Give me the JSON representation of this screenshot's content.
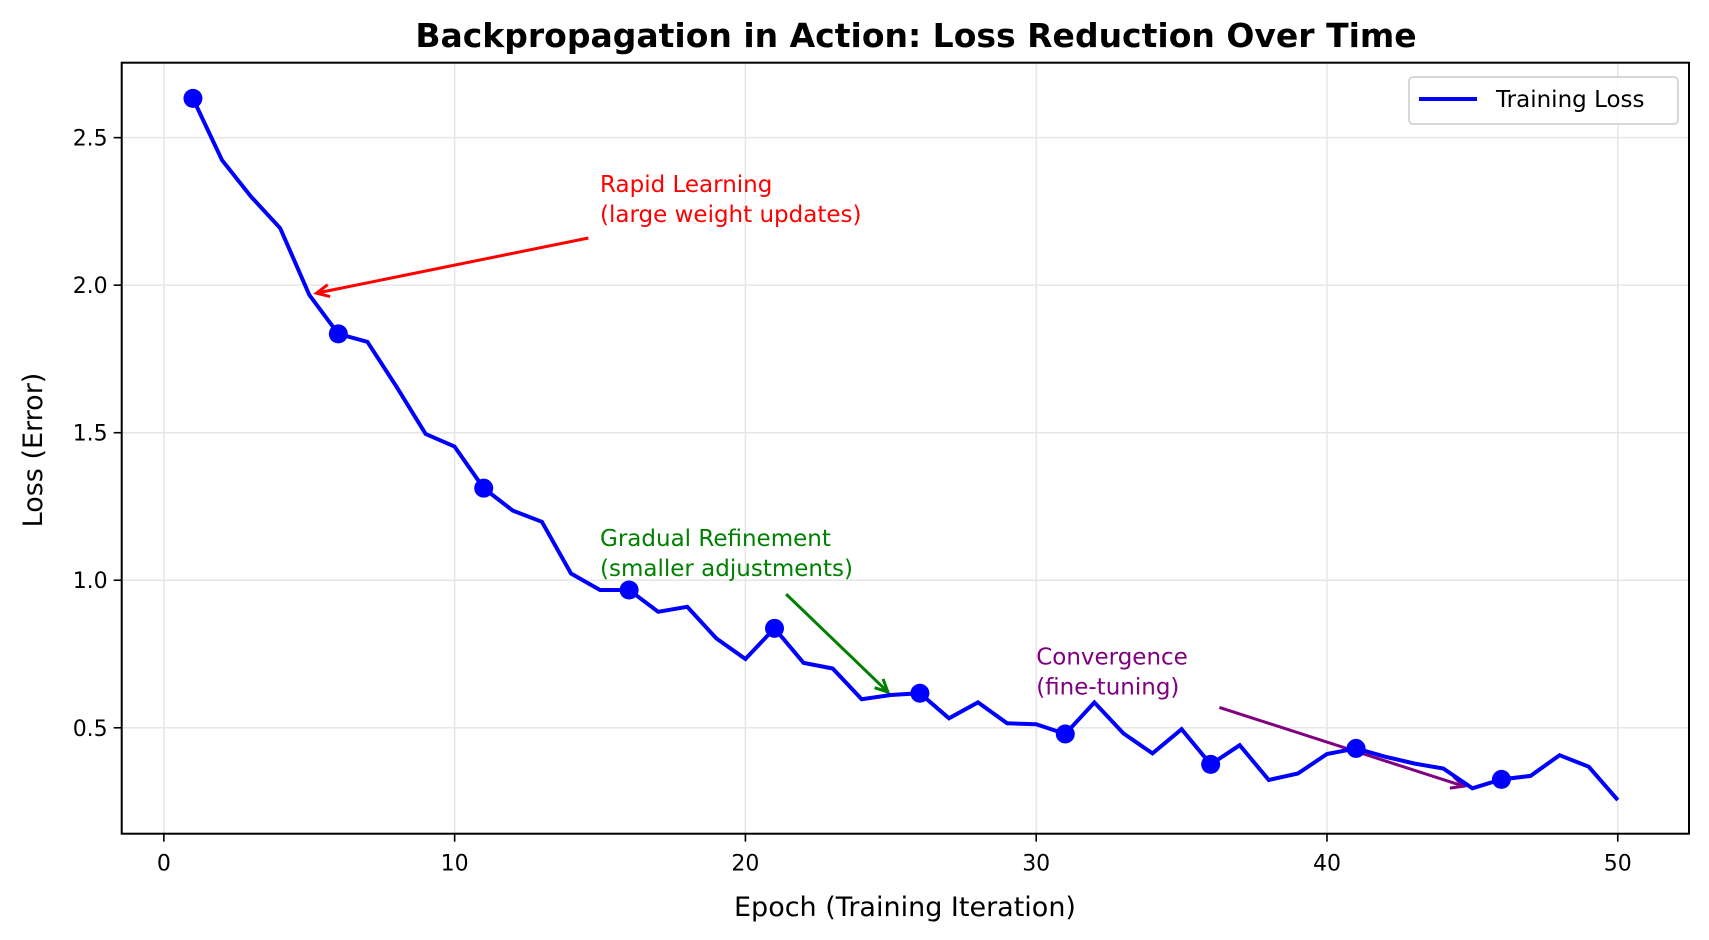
{
  "chart_data": {
    "type": "line",
    "title": "Backpropagation in Action: Loss Reduction Over Time",
    "xlabel": "Epoch (Training Iteration)",
    "ylabel": "Loss (Error)",
    "xlim": [
      -1.45,
      52.45
    ],
    "ylim": [
      0.141,
      2.754
    ],
    "xticks": [
      0,
      10,
      20,
      30,
      40,
      50
    ],
    "xtick_labels": [
      "0",
      "10",
      "20",
      "30",
      "40",
      "50"
    ],
    "yticks": [
      0.5,
      1.0,
      1.5,
      2.0,
      2.5
    ],
    "ytick_labels": [
      "0.5",
      "1.0",
      "1.5",
      "2.0",
      "2.5"
    ],
    "grid": true,
    "legend": {
      "placement": "top-right",
      "entries": [
        {
          "label": "Training Loss",
          "color": "#0000ff"
        }
      ]
    },
    "series": [
      {
        "name": "Training Loss",
        "color": "#0000ff",
        "x": [
          1,
          2,
          3,
          4,
          5,
          6,
          7,
          8,
          9,
          10,
          11,
          12,
          13,
          14,
          15,
          16,
          17,
          18,
          19,
          20,
          21,
          22,
          23,
          24,
          25,
          26,
          27,
          28,
          29,
          30,
          31,
          32,
          33,
          34,
          35,
          36,
          37,
          38,
          39,
          40,
          41,
          42,
          43,
          44,
          45,
          46,
          47,
          48,
          49,
          50
        ],
        "y": [
          2.633,
          2.424,
          2.3,
          2.193,
          1.967,
          1.835,
          1.808,
          1.656,
          1.496,
          1.453,
          1.312,
          1.236,
          1.198,
          1.023,
          0.967,
          0.967,
          0.893,
          0.91,
          0.803,
          0.733,
          0.837,
          0.72,
          0.701,
          0.597,
          0.611,
          0.617,
          0.532,
          0.586,
          0.515,
          0.512,
          0.479,
          0.586,
          0.481,
          0.413,
          0.495,
          0.376,
          0.441,
          0.323,
          0.345,
          0.411,
          0.43,
          0.402,
          0.379,
          0.362,
          0.295,
          0.325,
          0.337,
          0.407,
          0.368,
          0.255
        ],
        "marker_every_from": 1,
        "marker_step": 5
      }
    ],
    "annotations": [
      {
        "lines": [
          "Rapid Learning",
          "(large weight updates)"
        ],
        "color": "#ff0000",
        "text_xy": [
          15,
          2.2
        ],
        "arrow_from": [
          14.6,
          2.16
        ],
        "arrow_to": [
          5.25,
          1.973
        ]
      },
      {
        "lines": [
          "Gradual Refinement",
          "(smaller adjustments)"
        ],
        "color": "#008000",
        "text_xy": [
          15,
          1.0
        ],
        "arrow_from": [
          21.4,
          0.953
        ],
        "arrow_to": [
          24.9,
          0.621
        ]
      },
      {
        "lines": [
          "Convergence",
          "(fine-tuning)"
        ],
        "color": "#800080",
        "text_xy": [
          30,
          0.6
        ],
        "arrow_from": [
          36.3,
          0.569
        ],
        "arrow_to": [
          44.7,
          0.302
        ]
      }
    ]
  }
}
